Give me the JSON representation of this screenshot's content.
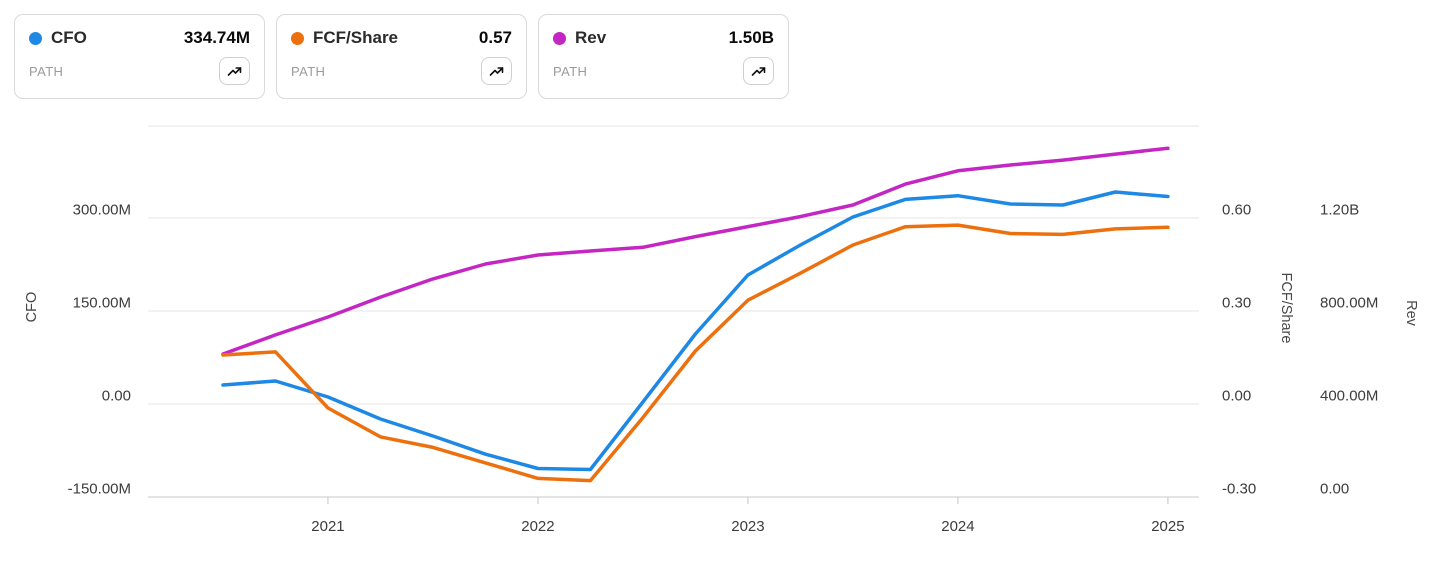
{
  "legend": {
    "cards": [
      {
        "label": "CFO",
        "value": "334.74M",
        "sub": "PATH",
        "color": "#1e88e5"
      },
      {
        "label": "FCF/Share",
        "value": "0.57",
        "sub": "PATH",
        "color": "#ed700f"
      },
      {
        "label": "Rev",
        "value": "1.50B",
        "sub": "PATH",
        "color": "#c326c3"
      }
    ]
  },
  "chart_data": {
    "type": "line",
    "grid": true,
    "legend_position": "top-left",
    "x": [
      2020.5,
      2020.75,
      2021,
      2021.25,
      2021.5,
      2021.75,
      2022,
      2022.25,
      2022.5,
      2022.75,
      2023,
      2023.25,
      2023.5,
      2023.75,
      2024,
      2024.25,
      2024.5,
      2024.75,
      2025
    ],
    "x_range": [
      2020.143,
      2025.148
    ],
    "x_ticks": [
      {
        "v": 2021,
        "label": "2021"
      },
      {
        "v": 2022,
        "label": "2022"
      },
      {
        "v": 2023,
        "label": "2023"
      },
      {
        "v": 2024,
        "label": "2024"
      },
      {
        "v": 2025,
        "label": "2025"
      }
    ],
    "series": [
      {
        "name": "CFO",
        "axis": "cfo",
        "color": "#1e88e5",
        "z": 2,
        "latest": "334.74M",
        "values": [
          30.6,
          37.1,
          11.3,
          -24.2,
          -51.6,
          -81.0,
          -104.0,
          -105.6,
          3.2,
          112.9,
          208.1,
          256.5,
          301.6,
          330.0,
          336.0,
          322.6,
          321.0,
          341.9,
          334.74
        ]
      },
      {
        "name": "FCF/Share",
        "axis": "fcf",
        "color": "#ed700f",
        "z": 3,
        "latest": "0.57",
        "values": [
          0.158,
          0.168,
          -0.013,
          -0.106,
          -0.14,
          -0.19,
          -0.24,
          -0.247,
          -0.044,
          0.171,
          0.335,
          0.422,
          0.513,
          0.572,
          0.577,
          0.55,
          0.547,
          0.565,
          0.57
        ]
      },
      {
        "name": "Rev",
        "axis": "rev",
        "color": "#c326c3",
        "z": 1,
        "latest": "1.50B",
        "values": [
          615,
          697,
          774,
          860,
          938,
          1002,
          1041,
          1058,
          1074,
          1120,
          1163,
          1206,
          1256,
          1346,
          1403,
          1428,
          1449,
          1475,
          1500
        ]
      }
    ],
    "axes": {
      "cfo": {
        "title": "CFO",
        "side": "left",
        "units": "millions",
        "min": -150,
        "max": 448.4,
        "ticks": [
          {
            "v": 300,
            "label": "300.00M"
          },
          {
            "v": 150,
            "label": "150.00M"
          },
          {
            "v": 0,
            "label": "0.00"
          },
          {
            "v": -150,
            "label": "-150.00M"
          }
        ]
      },
      "fcf": {
        "title": "FCF/Share",
        "side": "right-inner",
        "units": "per share",
        "min": -0.3,
        "max": 0.8968,
        "ticks": [
          {
            "v": 0.6,
            "label": "0.60"
          },
          {
            "v": 0.3,
            "label": "0.30"
          },
          {
            "v": 0.0,
            "label": "0.00"
          },
          {
            "v": -0.3,
            "label": "-0.30"
          }
        ]
      },
      "rev": {
        "title": "Rev",
        "side": "right-outer",
        "units": "millions",
        "min": 0,
        "max": 1595.7,
        "ticks": [
          {
            "v": 1200,
            "label": "1.20B"
          },
          {
            "v": 800,
            "label": "800.00M"
          },
          {
            "v": 400,
            "label": "400.00M"
          },
          {
            "v": 0,
            "label": "0.00"
          }
        ]
      }
    }
  }
}
